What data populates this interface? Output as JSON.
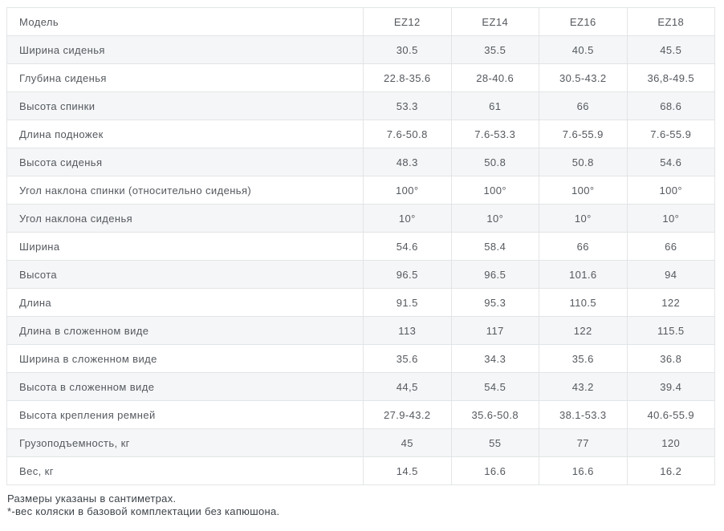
{
  "table": {
    "header": {
      "label": "Модель",
      "models": [
        "EZ12",
        "EZ14",
        "EZ16",
        "EZ18"
      ]
    },
    "rows": [
      {
        "label": "Ширина сиденья",
        "values": [
          "30.5",
          "35.5",
          "40.5",
          "45.5"
        ]
      },
      {
        "label": "Глубина сиденья",
        "values": [
          "22.8-35.6",
          "28-40.6",
          "30.5-43.2",
          "36,8-49.5"
        ]
      },
      {
        "label": "Высота спинки",
        "values": [
          "53.3",
          "61",
          "66",
          "68.6"
        ]
      },
      {
        "label": "Длина подножек",
        "values": [
          "7.6-50.8",
          "7.6-53.3",
          "7.6-55.9",
          "7.6-55.9"
        ]
      },
      {
        "label": "Высота сиденья",
        "values": [
          "48.3",
          "50.8",
          "50.8",
          "54.6"
        ]
      },
      {
        "label": "Угол наклона спинки (относительно сиденья)",
        "values": [
          "100°",
          "100°",
          "100°",
          "100°"
        ]
      },
      {
        "label": "Угол наклона сиденья",
        "values": [
          "10°",
          "10°",
          "10°",
          "10°"
        ]
      },
      {
        "label": "Ширина",
        "values": [
          "54.6",
          "58.4",
          "66",
          "66"
        ]
      },
      {
        "label": "Высота",
        "values": [
          "96.5",
          "96.5",
          "101.6",
          "94"
        ]
      },
      {
        "label": "Длина",
        "values": [
          "91.5",
          "95.3",
          "110.5",
          "122"
        ]
      },
      {
        "label": "Длина в сложенном виде",
        "values": [
          "113",
          "117",
          "122",
          "115.5"
        ]
      },
      {
        "label": "Ширина в сложенном виде",
        "values": [
          "35.6",
          "34.3",
          "35.6",
          "36.8"
        ]
      },
      {
        "label": "Высота в сложенном виде",
        "values": [
          "44,5",
          "54.5",
          "43.2",
          "39.4"
        ]
      },
      {
        "label": "Высота крепления ремней",
        "values": [
          "27.9-43.2",
          "35.6-50.8",
          "38.1-53.3",
          "40.6-55.9"
        ]
      },
      {
        "label": "Грузоподъемность, кг",
        "values": [
          "45",
          "55",
          "77",
          "120"
        ]
      },
      {
        "label": "Вес, кг",
        "values": [
          "14.5",
          "16.6",
          "16.6",
          "16.2"
        ]
      }
    ],
    "footnotes": [
      "Размеры указаны в сантиметрах.",
      "*-вес коляски в базовой комплектации без капюшона."
    ]
  },
  "colors": {
    "stripe": "#f4f6f7",
    "border": "#e2e5e7",
    "cell_text": "#55595e",
    "footnote_text": "#3d4349"
  }
}
